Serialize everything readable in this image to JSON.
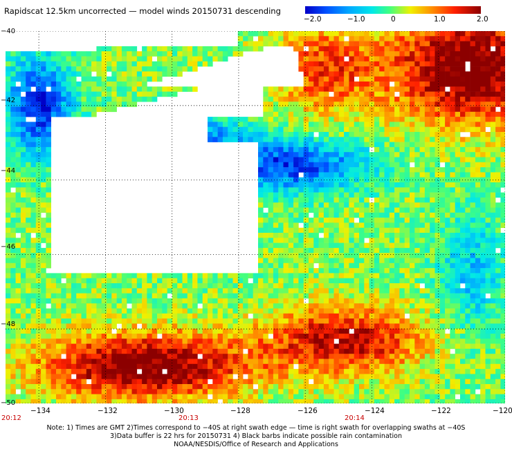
{
  "title": "Rapidscat 12.5km uncorrected — model winds 20150731 descending",
  "colorbar": {
    "ticks": [
      "−2.0",
      "−1.0",
      "0",
      "1.0",
      "2.0"
    ],
    "colors": [
      "#0000c8",
      "#0050ff",
      "#00a8ff",
      "#00e8e8",
      "#40ff80",
      "#f0f000",
      "#ff9000",
      "#ff2000",
      "#8c0000"
    ],
    "range": [
      -2.0,
      2.0
    ]
  },
  "axes": {
    "lon_range": [
      -135,
      -120
    ],
    "lat_range": [
      -50,
      -40
    ],
    "x_ticks": [
      {
        "value": -134,
        "label": "−134"
      },
      {
        "value": -132,
        "label": "−132"
      },
      {
        "value": -130,
        "label": "−130"
      },
      {
        "value": -128,
        "label": "−128"
      },
      {
        "value": -126,
        "label": "−126"
      },
      {
        "value": -124,
        "label": "−124"
      },
      {
        "value": -122,
        "label": "−122"
      },
      {
        "value": -120,
        "label": "−120"
      }
    ],
    "y_ticks": [
      {
        "value": -40,
        "label": "−40"
      },
      {
        "value": -42,
        "label": "−42"
      },
      {
        "value": -44,
        "label": "−44"
      },
      {
        "value": -46,
        "label": "−46"
      },
      {
        "value": -48,
        "label": "−48"
      },
      {
        "value": -50,
        "label": "−50"
      }
    ],
    "grid": true
  },
  "time_labels": [
    {
      "value": -135,
      "label": "20:12"
    },
    {
      "value": -130,
      "label": "20:13"
    },
    {
      "value": -125,
      "label": "20:14"
    }
  ],
  "notes": [
    "Note: 1) Times are GMT 2)Times correspond to −40S at right swath edge — time is right swath for overlapping swaths at −40S",
    "3)Data buffer is 22 hrs for 20150731 4) Black barbs indicate possible rain contamination",
    "NOAA/NESDIS/Office of Research and Applications"
  ],
  "map_description_regions": {
    "high_difference_zone_south": {
      "lon": [
        -134,
        -123
      ],
      "lat": [
        -50,
        -47.5
      ],
      "value_approx": 1.6
    },
    "high_difference_zone_northeast": {
      "lon": [
        -124,
        -120
      ],
      "lat": [
        -43.5,
        -40
      ],
      "value_approx": 2.0
    },
    "low_difference_band": {
      "lon": [
        -134,
        -122
      ],
      "lat": [
        -45,
        -41.5
      ],
      "value_approx": -1.5
    },
    "no_data_region": {
      "lon": [
        -134,
        -128
      ],
      "lat": [
        -46.5,
        -40.5
      ]
    }
  }
}
